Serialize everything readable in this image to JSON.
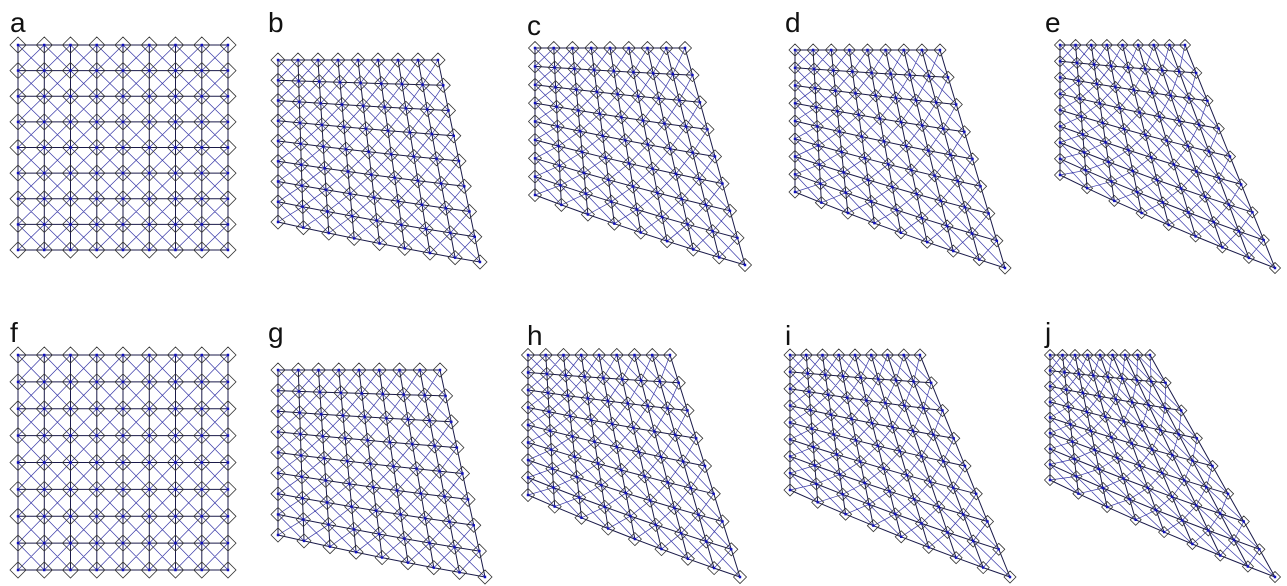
{
  "panels": [
    {
      "label": "a"
    },
    {
      "label": "b"
    },
    {
      "label": "c"
    },
    {
      "label": "d"
    },
    {
      "label": "e"
    },
    {
      "label": "f"
    },
    {
      "label": "g"
    },
    {
      "label": "h"
    },
    {
      "label": "i"
    },
    {
      "label": "j"
    }
  ]
}
